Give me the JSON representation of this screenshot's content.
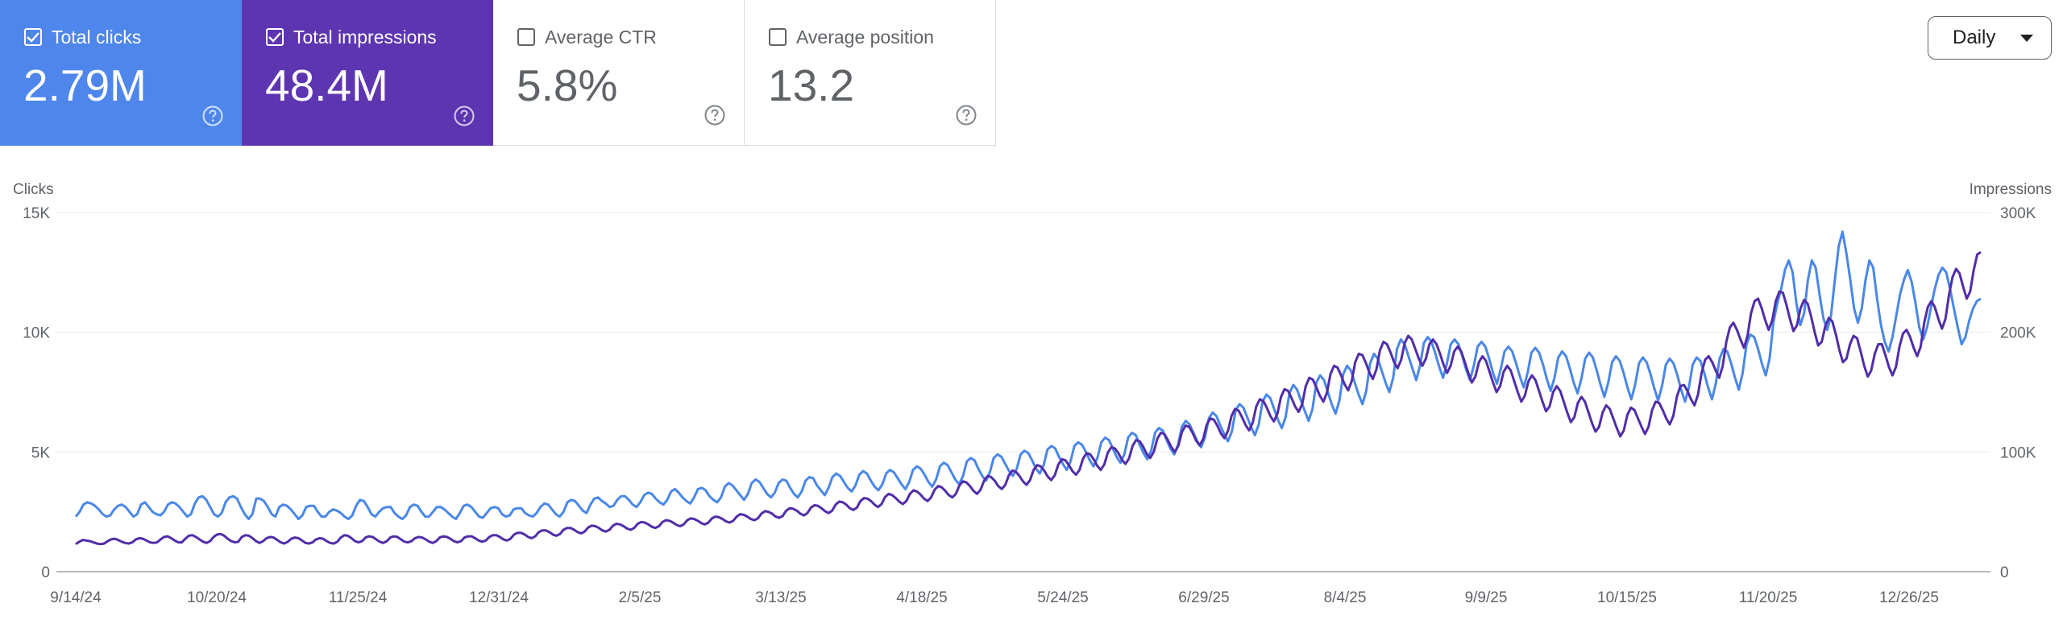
{
  "metrics": [
    {
      "label": "Total clicks",
      "value": "2.79M",
      "checked": true
    },
    {
      "label": "Total impressions",
      "value": "48.4M",
      "checked": true
    },
    {
      "label": "Average CTR",
      "value": "5.8%",
      "checked": false
    },
    {
      "label": "Average position",
      "value": "13.2",
      "checked": false
    }
  ],
  "period_selector": {
    "label": "Daily"
  },
  "icons": {
    "checkbox": "checkbox-icon",
    "help": "help-icon",
    "dropdown": "caret-down-icon"
  },
  "colors": {
    "clicks": "#4e86ec",
    "impressions": "#5e35b1",
    "clicks_line": "#4a87e8",
    "impressions_line": "#512da8"
  },
  "chart_data": {
    "type": "line",
    "y_left_label": "Clicks",
    "y_right_label": "Impressions",
    "y_left_ticks": [
      "0",
      "5K",
      "10K",
      "15K"
    ],
    "y_right_ticks": [
      "0",
      "100K",
      "200K",
      "300K"
    ],
    "ylim_left": [
      0,
      15000
    ],
    "ylim_right": [
      0,
      300000
    ],
    "x_ticks": [
      "9/14/24",
      "10/20/24",
      "11/25/24",
      "12/31/24",
      "2/5/25",
      "3/13/25",
      "4/18/25",
      "5/24/25",
      "6/29/25",
      "8/4/25",
      "9/9/25",
      "10/15/25",
      "11/20/25",
      "12/26/25"
    ],
    "grid": true,
    "series": [
      {
        "name": "Clicks",
        "axis": "left",
        "color": "#4a87e8",
        "values": [
          2300,
          2500,
          2800,
          2900,
          2850,
          2750,
          2600,
          2400,
          2300,
          2350,
          2600,
          2750,
          2800,
          2700,
          2500,
          2300,
          2400,
          2800,
          2900,
          2700,
          2500,
          2400,
          2350,
          2500,
          2800,
          2900,
          2850,
          2700,
          2500,
          2300,
          2400,
          2850,
          3100,
          3150,
          3000,
          2700,
          2400,
          2300,
          2450,
          2900,
          3100,
          3150,
          3050,
          2700,
          2400,
          2200,
          2400,
          3050,
          3050,
          2950,
          2700,
          2400,
          2300,
          2700,
          2800,
          2750,
          2600,
          2400,
          2200,
          2350,
          2700,
          2750,
          2750,
          2500,
          2300,
          2300,
          2500,
          2600,
          2550,
          2450,
          2300,
          2200,
          2350,
          2750,
          3000,
          2950,
          2700,
          2400,
          2300,
          2500,
          2650,
          2700,
          2700,
          2450,
          2300,
          2200,
          2350,
          2700,
          2800,
          2750,
          2500,
          2300,
          2300,
          2500,
          2700,
          2700,
          2600,
          2450,
          2300,
          2200,
          2450,
          2750,
          2800,
          2700,
          2500,
          2300,
          2250,
          2450,
          2650,
          2700,
          2650,
          2400,
          2300,
          2350,
          2600,
          2650,
          2650,
          2450,
          2350,
          2300,
          2450,
          2700,
          2850,
          2800,
          2600,
          2400,
          2300,
          2500,
          2900,
          3000,
          2950,
          2750,
          2550,
          2450,
          2800,
          3050,
          3100,
          2950,
          2850,
          2700,
          2750,
          3000,
          3150,
          3150,
          3000,
          2800,
          2700,
          2900,
          3200,
          3300,
          3250,
          3050,
          2900,
          2800,
          3000,
          3350,
          3450,
          3300,
          3100,
          2950,
          2850,
          3100,
          3450,
          3500,
          3400,
          3150,
          3000,
          2900,
          3100,
          3550,
          3700,
          3600,
          3400,
          3200,
          3000,
          3250,
          3700,
          3850,
          3750,
          3500,
          3250,
          3100,
          3300,
          3700,
          3850,
          3800,
          3500,
          3250,
          3100,
          3350,
          3800,
          3950,
          3900,
          3600,
          3400,
          3200,
          3500,
          3950,
          4100,
          4000,
          3750,
          3500,
          3350,
          3600,
          4050,
          4200,
          4100,
          3800,
          3550,
          3400,
          3650,
          4100,
          4250,
          4150,
          3900,
          3650,
          3450,
          3750,
          4250,
          4400,
          4300,
          4050,
          3750,
          3550,
          3850,
          4400,
          4550,
          4450,
          4150,
          3850,
          3650,
          4000,
          4600,
          4750,
          4650,
          4300,
          4000,
          3800,
          4150,
          4750,
          4900,
          4800,
          4500,
          4200,
          4000,
          4300,
          4900,
          5050,
          4950,
          4650,
          4300,
          4100,
          4450,
          5100,
          5250,
          5150,
          4800,
          4500,
          4250,
          4600,
          5250,
          5400,
          5300,
          5000,
          4650,
          4400,
          4750,
          5400,
          5600,
          5500,
          5150,
          4800,
          4550,
          4900,
          5600,
          5800,
          5700,
          5300,
          4950,
          4700,
          5050,
          5800,
          6000,
          5900,
          5500,
          5150,
          4900,
          5300,
          6050,
          6300,
          6150,
          5800,
          5450,
          5200,
          5600,
          6400,
          6650,
          6500,
          6100,
          5750,
          5450,
          5850,
          6750,
          7000,
          6850,
          6450,
          6050,
          5700,
          6150,
          7100,
          7400,
          7250,
          6800,
          6350,
          6000,
          6450,
          7450,
          7800,
          7600,
          7150,
          6700,
          6300,
          6800,
          7900,
          8200,
          8000,
          7500,
          7000,
          6600,
          7150,
          8250,
          8600,
          8400,
          7900,
          7400,
          7000,
          7550,
          8700,
          9100,
          8900,
          8400,
          7900,
          7500,
          8100,
          9300,
          9700,
          9500,
          9000,
          8500,
          8000,
          8600,
          9550,
          9800,
          9600,
          9100,
          8550,
          8100,
          8700,
          9500,
          9700,
          9500,
          9000,
          8450,
          8000,
          8600,
          9400,
          9600,
          9400,
          8900,
          8300,
          7850,
          8450,
          9200,
          9400,
          9200,
          8700,
          8150,
          7700,
          8300,
          9150,
          9350,
          9150,
          8650,
          8050,
          7550,
          8100,
          8950,
          9200,
          9000,
          8500,
          7900,
          7450,
          8050,
          8900,
          9150,
          8950,
          8400,
          7800,
          7300,
          7900,
          8750,
          9000,
          8800,
          8300,
          7700,
          7200,
          7800,
          8700,
          8950,
          8750,
          8250,
          7650,
          7150,
          7750,
          8650,
          8900,
          8700,
          8200,
          7600,
          7100,
          7700,
          8650,
          8950,
          8800,
          8300,
          7700,
          7200,
          7850,
          8900,
          9300,
          9200,
          8700,
          8100,
          7600,
          8300,
          9500,
          9900,
          9800,
          9300,
          8700,
          8200,
          8900,
          10400,
          11200,
          11800,
          12600,
          13000,
          12500,
          11200,
          10300,
          10800,
          12200,
          13000,
          12700,
          11600,
          10600,
          10100,
          10700,
          12200,
          13600,
          14200,
          13300,
          12200,
          11000,
          10400,
          11000,
          12200,
          13000,
          12700,
          11400,
          10300,
          9600,
          9200,
          9800,
          10700,
          11600,
          12200,
          12600,
          12100,
          11200,
          10200,
          9700,
          10200,
          11000,
          11800,
          12400,
          12700,
          12500,
          11800,
          11000,
          10200,
          9500,
          9800,
          10500,
          11000,
          11300,
          11400
        ]
      },
      {
        "name": "Impressions",
        "axis": "right",
        "color": "#512da8",
        "values": [
          23000,
          25000,
          26500,
          26000,
          25500,
          24500,
          23500,
          23000,
          23500,
          25500,
          27000,
          27500,
          26500,
          25000,
          24000,
          23500,
          24500,
          27000,
          28000,
          27500,
          26000,
          24500,
          24000,
          24500,
          27000,
          29000,
          29500,
          28000,
          26000,
          24500,
          24500,
          27500,
          30000,
          30500,
          29000,
          27000,
          25000,
          24000,
          25500,
          29000,
          31000,
          31500,
          30000,
          27500,
          25500,
          24500,
          25000,
          29000,
          30500,
          30000,
          28000,
          25500,
          24000,
          25500,
          28000,
          29000,
          28500,
          26500,
          24500,
          23500,
          25000,
          27500,
          28500,
          28000,
          26000,
          24000,
          23500,
          24500,
          27000,
          28000,
          27500,
          25500,
          24000,
          23500,
          25000,
          28500,
          30500,
          30000,
          28000,
          25500,
          24500,
          25500,
          28500,
          29500,
          29000,
          27000,
          25000,
          24000,
          25500,
          28500,
          29500,
          29000,
          27000,
          25000,
          24500,
          25500,
          28000,
          29000,
          28500,
          27000,
          25000,
          24000,
          25500,
          28500,
          29500,
          29000,
          27500,
          25500,
          24500,
          25500,
          28500,
          29500,
          29500,
          28000,
          26000,
          25000,
          26000,
          29000,
          30500,
          30500,
          29000,
          27000,
          26000,
          27500,
          31000,
          32500,
          32500,
          31000,
          29000,
          28000,
          29500,
          33000,
          34500,
          34500,
          33000,
          31000,
          30000,
          31500,
          35000,
          36500,
          36500,
          35000,
          33000,
          32000,
          33500,
          37000,
          38500,
          38000,
          36500,
          34500,
          33500,
          35000,
          38500,
          40000,
          39500,
          38000,
          36000,
          35000,
          36500,
          40000,
          41500,
          41000,
          39500,
          37500,
          36500,
          38000,
          41500,
          43000,
          42500,
          41000,
          39000,
          38000,
          39500,
          43000,
          44500,
          44000,
          42500,
          40500,
          39500,
          41000,
          44500,
          46000,
          45500,
          44000,
          42000,
          41000,
          42500,
          46000,
          48000,
          47500,
          46000,
          44000,
          43000,
          44500,
          48500,
          50500,
          50000,
          48500,
          46000,
          45000,
          46500,
          51000,
          53000,
          52500,
          51000,
          48500,
          47000,
          49000,
          53500,
          55500,
          55000,
          53000,
          50500,
          49000,
          51000,
          56000,
          58500,
          58000,
          56000,
          53000,
          51500,
          53500,
          59000,
          61500,
          61000,
          59000,
          56000,
          54000,
          56500,
          62500,
          65000,
          64000,
          61500,
          58500,
          56500,
          59000,
          65000,
          68000,
          67000,
          64500,
          61000,
          59000,
          62000,
          68500,
          71500,
          70500,
          67500,
          64000,
          62000,
          65000,
          72000,
          75500,
          74500,
          71500,
          67500,
          65000,
          68500,
          76000,
          80000,
          79000,
          76000,
          71500,
          69000,
          72500,
          80500,
          84500,
          83500,
          80000,
          75500,
          72500,
          76500,
          85000,
          89000,
          88000,
          84500,
          79500,
          76500,
          80500,
          89500,
          94000,
          93000,
          89000,
          84000,
          81000,
          85000,
          94500,
          99000,
          98000,
          94000,
          88500,
          85000,
          89500,
          99500,
          104000,
          103000,
          99000,
          93500,
          90000,
          94500,
          105000,
          110000,
          109000,
          104500,
          98500,
          95000,
          100000,
          111000,
          116000,
          115000,
          110000,
          104000,
          100000,
          105500,
          117000,
          122000,
          121000,
          116000,
          109500,
          105500,
          111000,
          123000,
          128000,
          127000,
          122000,
          115500,
          111500,
          117500,
          130000,
          136000,
          134500,
          129000,
          122500,
          118000,
          124500,
          138000,
          144000,
          142500,
          137000,
          130000,
          125500,
          132000,
          146000,
          152500,
          151000,
          145000,
          138000,
          133500,
          140000,
          155000,
          162000,
          160500,
          154000,
          147000,
          142000,
          149500,
          165000,
          172000,
          170500,
          164000,
          156500,
          151500,
          159000,
          175000,
          182000,
          181000,
          174500,
          166500,
          161000,
          169000,
          185000,
          192000,
          190000,
          183000,
          175000,
          170000,
          177000,
          191000,
          197000,
          194000,
          186000,
          178000,
          172000,
          178000,
          190000,
          194000,
          190000,
          182000,
          173000,
          166000,
          172000,
          184000,
          188000,
          184000,
          175000,
          166000,
          158000,
          163000,
          175000,
          180000,
          176000,
          167000,
          158000,
          150000,
          155000,
          167000,
          172000,
          168000,
          159000,
          150000,
          142000,
          147000,
          159000,
          164000,
          160000,
          151000,
          142000,
          134000,
          138000,
          150000,
          155000,
          151000,
          142000,
          133000,
          125000,
          129000,
          141000,
          146000,
          142000,
          133000,
          124000,
          117000,
          121000,
          133000,
          139000,
          136000,
          128000,
          120000,
          113000,
          118000,
          131000,
          137000,
          135000,
          128000,
          121000,
          115000,
          121000,
          135000,
          142000,
          141000,
          135000,
          128000,
          123000,
          130000,
          146000,
          155000,
          156000,
          151000,
          144000,
          139000,
          148000,
          166000,
          177000,
          180000,
          175000,
          168000,
          162000,
          172000,
          192000,
          204000,
          208000,
          202000,
          194000,
          187000,
          197000,
          216000,
          226000,
          228000,
          220000,
          210000,
          202000,
          210000,
          226000,
          234000,
          233000,
          223000,
          211000,
          201000,
          206000,
          220000,
          227000,
          224000,
          213000,
          200000,
          189000,
          192000,
          205000,
          212000,
          209000,
          198000,
          185000,
          175000,
          178000,
          190000,
          197000,
          195000,
          184000,
          172000,
          163000,
          168000,
          182000,
          190000,
          190000,
          181000,
          171000,
          164000,
          171000,
          188000,
          199000,
          202000,
          196000,
          187000,
          180000,
          188000,
          208000,
          221000,
          226000,
          221000,
          211000,
          203000,
          211000,
          231000,
          246000,
          253000,
          249000,
          238000,
          228000,
          234000,
          252000,
          265000,
          267000
        ]
      }
    ]
  }
}
